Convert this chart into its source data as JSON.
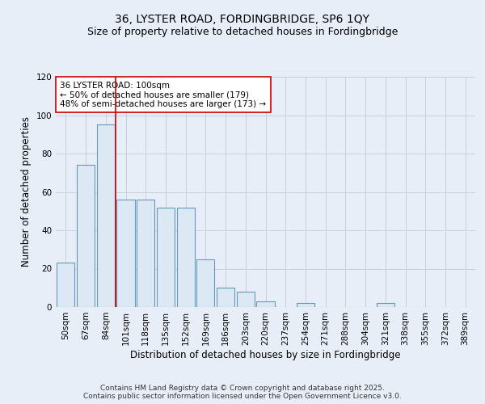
{
  "title1": "36, LYSTER ROAD, FORDINGBRIDGE, SP6 1QY",
  "title2": "Size of property relative to detached houses in Fordingbridge",
  "xlabel": "Distribution of detached houses by size in Fordingbridge",
  "ylabel": "Number of detached properties",
  "categories": [
    "50sqm",
    "67sqm",
    "84sqm",
    "101sqm",
    "118sqm",
    "135sqm",
    "152sqm",
    "169sqm",
    "186sqm",
    "203sqm",
    "220sqm",
    "237sqm",
    "254sqm",
    "271sqm",
    "288sqm",
    "304sqm",
    "321sqm",
    "338sqm",
    "355sqm",
    "372sqm",
    "389sqm"
  ],
  "values": [
    23,
    74,
    95,
    56,
    56,
    52,
    52,
    25,
    10,
    8,
    3,
    0,
    2,
    0,
    0,
    0,
    2,
    0,
    0,
    0,
    0
  ],
  "bar_color": "#dce8f4",
  "bar_edge_color": "#6699bb",
  "vline_color": "#cc0000",
  "annotation_text": "36 LYSTER ROAD: 100sqm\n← 50% of detached houses are smaller (179)\n48% of semi-detached houses are larger (173) →",
  "annotation_box_color": "#ffffff",
  "annotation_box_edge": "#cc0000",
  "ylim": [
    0,
    120
  ],
  "yticks": [
    0,
    20,
    40,
    60,
    80,
    100,
    120
  ],
  "background_color": "#e8eef8",
  "grid_color": "#c8d0dc",
  "footer_text": "Contains HM Land Registry data © Crown copyright and database right 2025.\nContains public sector information licensed under the Open Government Licence v3.0.",
  "title_fontsize": 10,
  "subtitle_fontsize": 9,
  "axis_label_fontsize": 8.5,
  "tick_fontsize": 7.5,
  "annotation_fontsize": 7.5,
  "footer_fontsize": 6.5
}
